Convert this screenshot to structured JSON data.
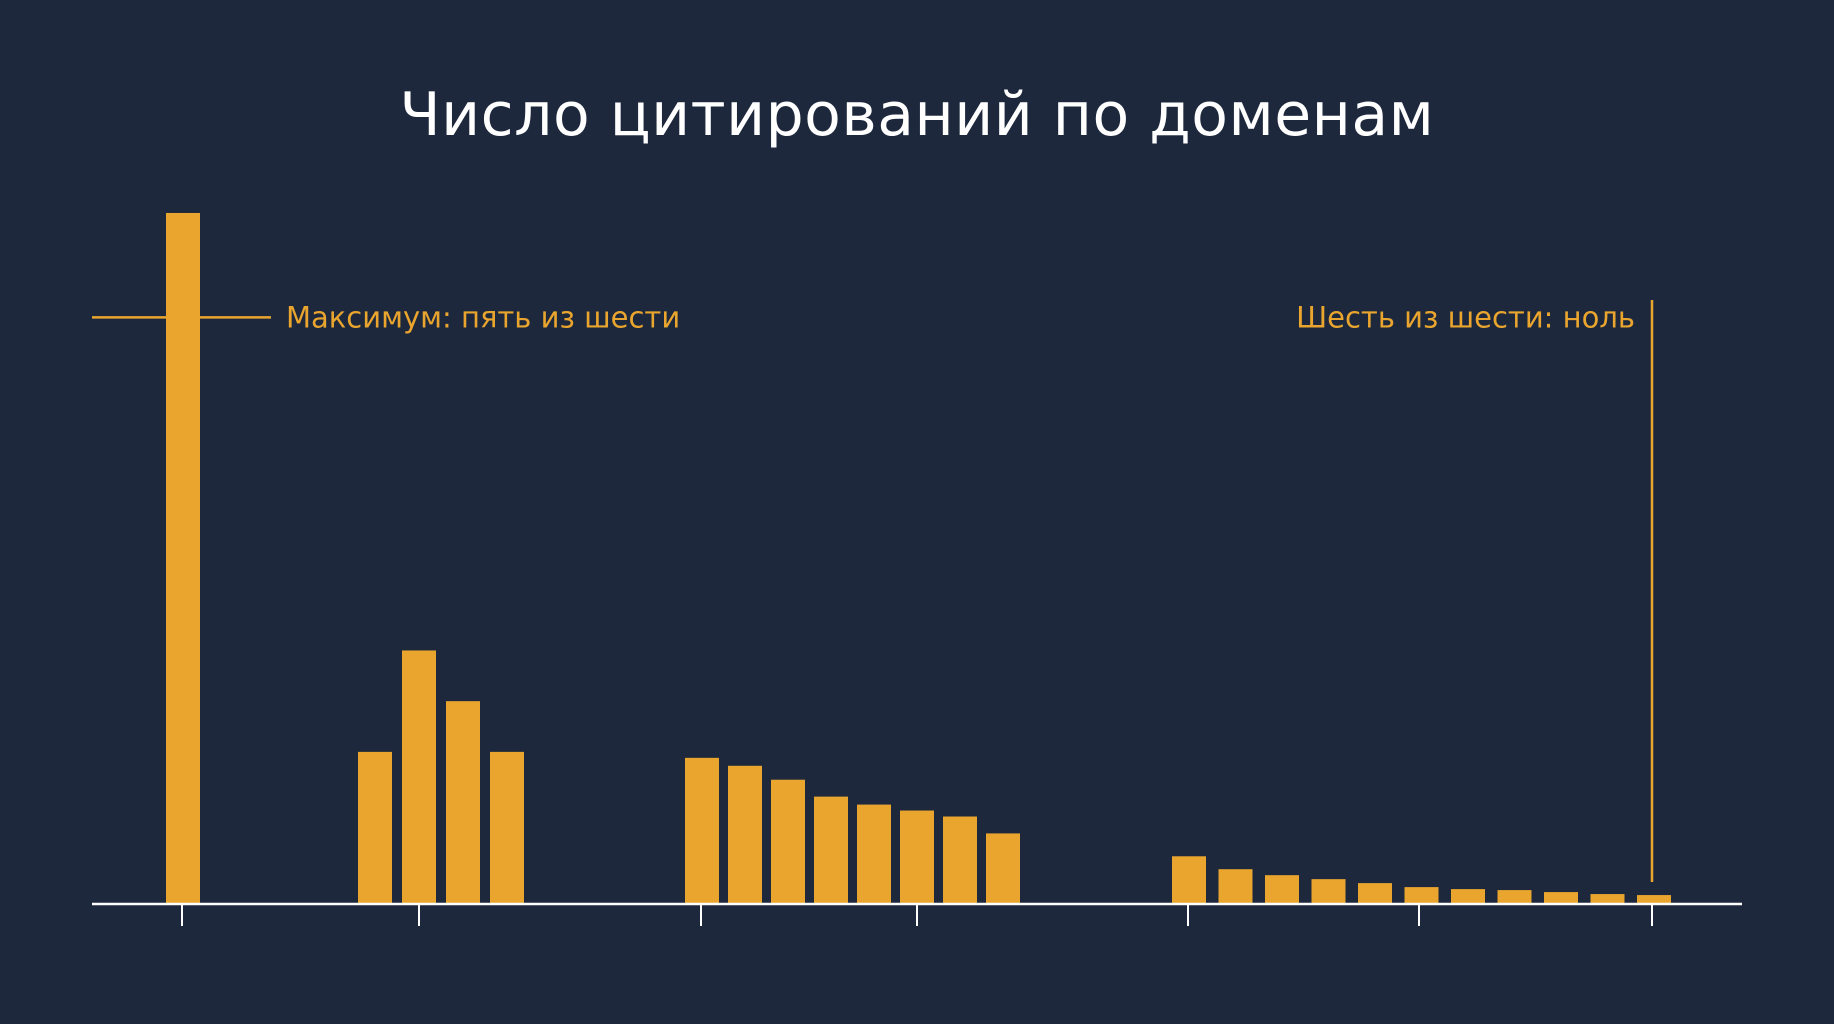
{
  "colors": {
    "background": "#1d283c",
    "bar": "#e9a52e",
    "axis": "#ffffff",
    "annotation": "#e9a52e",
    "title": "#ffffff"
  },
  "chart_data": {
    "type": "bar",
    "title": "Число цитирований по доменам",
    "xlabel": "",
    "ylabel": "",
    "grid": false,
    "legend": "none",
    "ylim": [
      0,
      7.0
    ],
    "groups": [
      {
        "values": [
          6.95
        ]
      },
      {
        "values": [
          1.53,
          2.55,
          2.04,
          1.53
        ]
      },
      {
        "values": [
          1.47,
          1.39,
          1.25,
          1.08,
          1.0,
          0.94,
          0.88,
          0.71
        ]
      },
      {
        "values": [
          0.48,
          0.35,
          0.29,
          0.25,
          0.21,
          0.17,
          0.15,
          0.14,
          0.12,
          0.1,
          0.09
        ]
      }
    ],
    "annotations": [
      {
        "text": "Максимум: пять из шести",
        "value": 5.9
      },
      {
        "text": "Шесть из шести: ноль",
        "value": 0
      }
    ]
  }
}
